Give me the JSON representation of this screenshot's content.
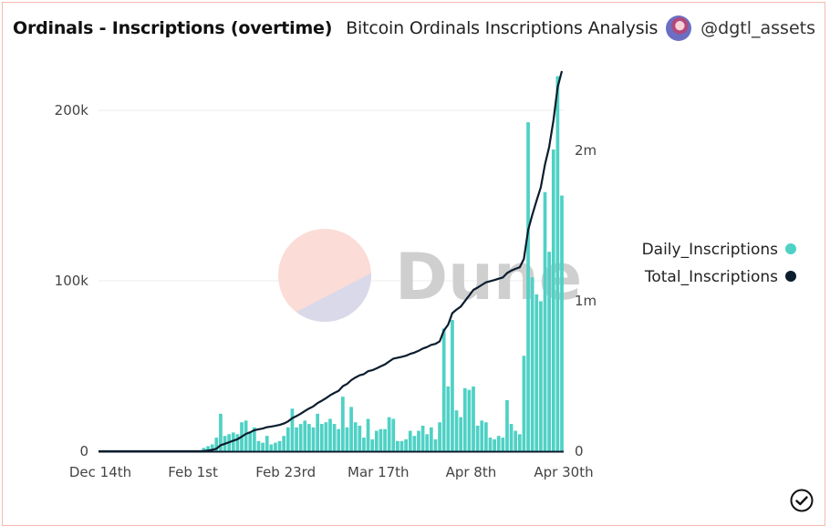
{
  "header": {
    "title": "Ordinals - Inscriptions (overtime)",
    "subtitle": "Bitcoin Ordinals Inscriptions Analysis",
    "author": "@dgtl_assets",
    "avatar_icon": "user-avatar"
  },
  "watermark": "Dune",
  "status_icon": "check-circle-icon",
  "colors": {
    "daily": "#4fd1c5",
    "total": "#0b1d2e",
    "grid": "#ececec",
    "watermark_top": "#fbdcd6",
    "watermark_bottom": "#d9d9ea"
  },
  "chart_data": {
    "type": "bar+line",
    "title": "Ordinals - Inscriptions (overtime)",
    "x_tick_labels": [
      "Dec 14th",
      "Feb 1st",
      "Feb 23rd",
      "Mar 17th",
      "Apr 8th",
      "Apr 30th"
    ],
    "x_tick_index": [
      0,
      22,
      44,
      66,
      88,
      110
    ],
    "x_count": 111,
    "y_left": {
      "label": "",
      "ticks": [
        0,
        100000,
        200000
      ],
      "tick_labels": [
        "0",
        "100k",
        "200k"
      ],
      "range": [
        0,
        225000
      ]
    },
    "y_right": {
      "label": "",
      "ticks": [
        0,
        1000000,
        2000000
      ],
      "tick_labels": [
        "0",
        "1m",
        "2m"
      ],
      "range": [
        0,
        2550000
      ]
    },
    "legend": {
      "position": "right",
      "entries": [
        {
          "name": "Daily_Inscriptions",
          "color": "#4fd1c5"
        },
        {
          "name": "Total_Inscriptions",
          "color": "#0b1d2e"
        }
      ]
    },
    "grid": true,
    "series": [
      {
        "name": "Daily_Inscriptions",
        "type": "bar",
        "axis": "left",
        "values": [
          0,
          0,
          0,
          0,
          0,
          0,
          0,
          0,
          0,
          0,
          0,
          0,
          0,
          0,
          0,
          0,
          0,
          0,
          0,
          0,
          0,
          0,
          0,
          0,
          0,
          2000,
          3000,
          4000,
          8000,
          22000,
          9000,
          10000,
          11000,
          10000,
          17000,
          18000,
          11000,
          14000,
          6000,
          5000,
          9000,
          4000,
          5000,
          6000,
          9000,
          14000,
          25000,
          14000,
          16000,
          18000,
          16000,
          14000,
          22000,
          16000,
          17000,
          19000,
          16000,
          13000,
          32000,
          14000,
          26000,
          17000,
          15000,
          8000,
          19000,
          7000,
          12000,
          13000,
          13000,
          20000,
          19000,
          6000,
          6000,
          7000,
          12000,
          9000,
          12000,
          15000,
          10000,
          14000,
          7000,
          17000,
          72000,
          38000,
          77000,
          24000,
          20000,
          37000,
          36000,
          38000,
          15000,
          18000,
          17000,
          8000,
          7000,
          9000,
          8000,
          30000,
          16000,
          12000,
          10000,
          56000,
          193000,
          102000,
          92000,
          88000,
          152000,
          117000,
          177000,
          220000,
          150000
        ]
      },
      {
        "name": "Total_Inscriptions",
        "type": "line",
        "axis": "right",
        "values": [
          0,
          0,
          0,
          0,
          0,
          0,
          0,
          0,
          0,
          0,
          0,
          0,
          0,
          0,
          0,
          0,
          0,
          0,
          0,
          0,
          0,
          0,
          0,
          0,
          0,
          2000,
          5000,
          9000,
          17000,
          40000,
          50000,
          60000,
          70000,
          80000,
          97000,
          115000,
          126000,
          140000,
          146000,
          151000,
          160000,
          164000,
          169000,
          175000,
          184000,
          198000,
          220000,
          234000,
          250000,
          268000,
          284000,
          298000,
          320000,
          336000,
          353000,
          372000,
          388000,
          401000,
          433000,
          447000,
          473000,
          490000,
          505000,
          513000,
          532000,
          539000,
          551000,
          564000,
          577000,
          597000,
          616000,
          622000,
          628000,
          635000,
          647000,
          656000,
          668000,
          683000,
          693000,
          707000,
          714000,
          731000,
          803000,
          841000,
          918000,
          942000,
          962000,
          999000,
          1035000,
          1073000,
          1088000,
          1106000,
          1123000,
          1131000,
          1138000,
          1147000,
          1155000,
          1185000,
          1201000,
          1213000,
          1223000,
          1279000,
          1472000,
          1574000,
          1666000,
          1754000,
          1906000,
          2023000,
          2200000,
          2420000,
          2570000
        ]
      }
    ]
  }
}
